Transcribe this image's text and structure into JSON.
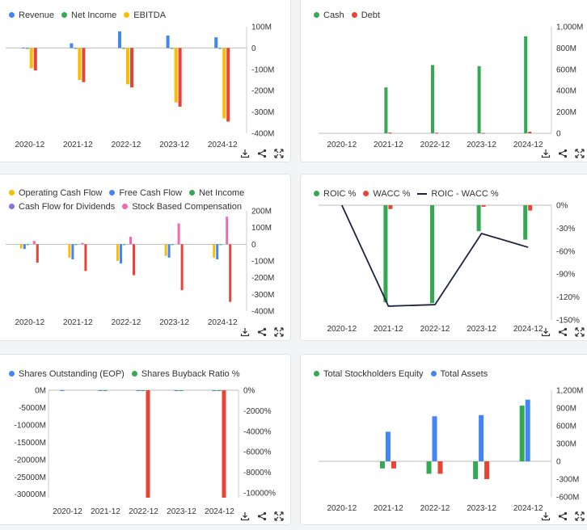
{
  "colors": {
    "blue": "#4285f4",
    "green": "#34a853",
    "yellow": "#fbbc05",
    "red": "#ea4335",
    "purple": "#8a70e0",
    "pink": "#f06aae",
    "navy": "#1c2340",
    "axis": "#999999"
  },
  "icon_names": [
    "download-icon",
    "share-icon",
    "expand-icon"
  ],
  "chart_data": [
    {
      "type": "bar",
      "title": "",
      "categories": [
        "2020-12",
        "2021-12",
        "2022-12",
        "2023-12",
        "2024-12"
      ],
      "series": [
        {
          "name": "Revenue",
          "color": "#4285f4",
          "values": [
            2,
            22,
            78,
            58,
            50
          ]
        },
        {
          "name": "Net Income",
          "color": "#34a853",
          "values": [
            -1,
            -2,
            -2,
            -2,
            -2
          ]
        },
        {
          "name": "EBITDA",
          "color": "#fbbc05",
          "values": [
            -95,
            -150,
            -170,
            -255,
            -330
          ]
        },
        {
          "name": "Net Income",
          "color": "#ea4335",
          "values": [
            -105,
            -160,
            -185,
            -275,
            -345
          ],
          "legend": false
        }
      ],
      "ylim": [
        -400,
        100
      ],
      "ticks": [
        100,
        0,
        -100,
        -200,
        -300,
        -400
      ],
      "tick_labels": [
        "100M",
        "0",
        "-100M",
        "-200M",
        "-300M",
        "-400M"
      ]
    },
    {
      "type": "bar",
      "title": "",
      "categories": [
        "2020-12",
        "2021-12",
        "2022-12",
        "2023-12",
        "2024-12"
      ],
      "series": [
        {
          "name": "Cash",
          "color": "#34a853",
          "values": [
            0,
            430,
            640,
            630,
            910
          ]
        },
        {
          "name": "Debt",
          "color": "#ea4335",
          "values": [
            0,
            8,
            5,
            4,
            15
          ]
        }
      ],
      "ylim": [
        0,
        1000
      ],
      "ticks": [
        1000,
        800,
        600,
        400,
        200,
        0
      ],
      "tick_labels": [
        "1,000M",
        "800M",
        "600M",
        "400M",
        "200M",
        "0"
      ]
    },
    {
      "type": "bar",
      "title": "",
      "categories": [
        "2020-12",
        "2021-12",
        "2022-12",
        "2023-12",
        "2024-12"
      ],
      "series": [
        {
          "name": "Operating Cash Flow",
          "color": "#fbbc05",
          "values": [
            -25,
            -80,
            -100,
            -70,
            -80
          ]
        },
        {
          "name": "Free Cash Flow",
          "color": "#4285f4",
          "values": [
            -28,
            -90,
            -115,
            -80,
            -90
          ]
        },
        {
          "name": "Net Income",
          "color": "#34a853",
          "values": [
            -1,
            -2,
            -2,
            -2,
            -2
          ]
        },
        {
          "name": "Cash Flow for Dividends",
          "color": "#8a70e0",
          "values": [
            0,
            0,
            0,
            0,
            0
          ]
        },
        {
          "name": "Stock Based Compensation",
          "color": "#f06aae",
          "values": [
            20,
            8,
            45,
            125,
            165
          ]
        },
        {
          "name": "Net Income",
          "color": "#ea4335",
          "values": [
            -110,
            -160,
            -185,
            -275,
            -345
          ],
          "legend": false
        }
      ],
      "ylim": [
        -400,
        200
      ],
      "ticks": [
        200,
        100,
        0,
        -100,
        -200,
        -300,
        -400
      ],
      "tick_labels": [
        "200M",
        "100M",
        "0",
        "-100M",
        "-200M",
        "-300M",
        "-400M"
      ]
    },
    {
      "type": "bar+line",
      "title": "",
      "categories": [
        "2020-12",
        "2021-12",
        "2022-12",
        "2023-12",
        "2024-12"
      ],
      "series": [
        {
          "name": "ROIC %",
          "color": "#34a853",
          "values": [
            0,
            -127,
            -128,
            -34,
            -45
          ]
        },
        {
          "name": "WACC %",
          "color": "#ea4335",
          "values": [
            0,
            -5,
            0,
            -2,
            -7
          ]
        },
        {
          "name": "ROIC - WACC %",
          "color": "#1c2340",
          "values": [
            5,
            -132,
            -130,
            -37,
            -55
          ],
          "line": true
        }
      ],
      "ylim": [
        -150,
        0
      ],
      "ticks": [
        0,
        -30,
        -60,
        -90,
        -120,
        -150
      ],
      "tick_labels": [
        "0%",
        "-30%",
        "-60%",
        "-90%",
        "-120%",
        "-150%"
      ]
    },
    {
      "type": "bar",
      "title": "",
      "categories": [
        "2020-12",
        "2021-12",
        "2022-12",
        "2023-12",
        "2024-12"
      ],
      "series": [
        {
          "name": "Shares Outstanding (EOP)",
          "color": "#4285f4",
          "values": [
            -90,
            -90,
            -90,
            -90,
            -90
          ]
        },
        {
          "name": "Shares Buyback Ratio %",
          "color": "#34a853",
          "values": [
            0,
            -60,
            -60,
            -50,
            -60
          ]
        },
        {
          "name": "Shares Buyback Ratio %",
          "color": "#ea4335",
          "values": [
            0,
            0,
            -31000,
            0,
            -31000
          ],
          "legend": false
        }
      ],
      "ylim": [
        -31000,
        0
      ],
      "ticks": [
        0,
        -5000,
        -10000,
        -15000,
        -20000,
        -25000,
        -30000
      ],
      "tick_labels": [
        "0M",
        "-5000M",
        "-10000M",
        "-15000M",
        "-20000M",
        "-25000M",
        "-30000M"
      ],
      "y2_tick_labels": [
        "0%",
        "-2000%",
        "-4000%",
        "-6000%",
        "-8000%",
        "-10000%"
      ]
    },
    {
      "type": "bar",
      "title": "",
      "categories": [
        "2020-12",
        "2021-12",
        "2022-12",
        "2023-12",
        "2024-12"
      ],
      "series": [
        {
          "name": "Total Stockholders Equity",
          "color": "#34a853",
          "values": [
            0,
            -120,
            -210,
            -300,
            940
          ]
        },
        {
          "name": "Total Assets",
          "color": "#4285f4",
          "values": [
            0,
            500,
            760,
            780,
            1040
          ]
        },
        {
          "name": "Total Stockholders Equity",
          "color": "#ea4335",
          "values": [
            0,
            -120,
            -210,
            -300,
            0
          ],
          "legend": false
        }
      ],
      "ylim": [
        -600,
        1200
      ],
      "ticks": [
        1200,
        900,
        600,
        300,
        0,
        -300,
        -600
      ],
      "tick_labels": [
        "1,200M",
        "900M",
        "600M",
        "300M",
        "0",
        "-300M",
        "-600M"
      ]
    }
  ]
}
